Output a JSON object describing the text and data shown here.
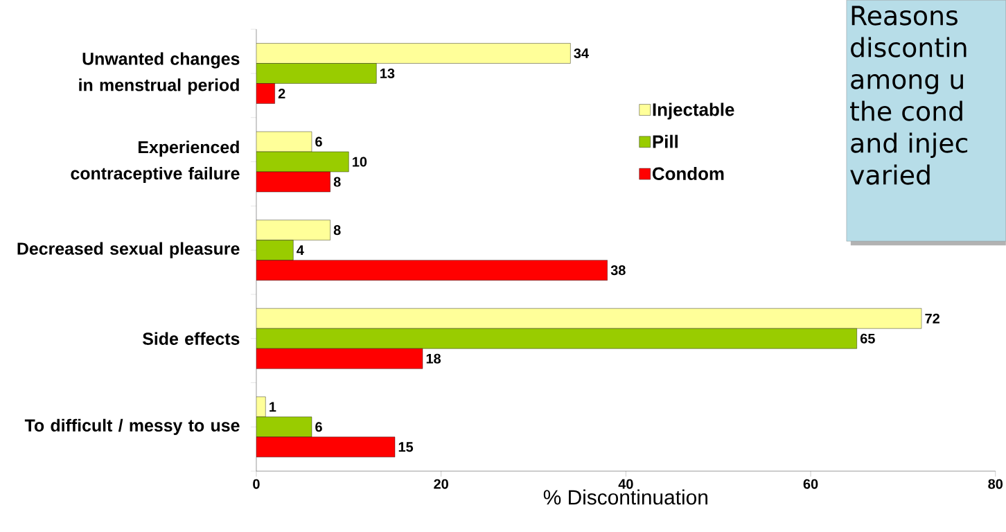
{
  "chart_data": {
    "type": "bar",
    "orientation": "horizontal",
    "xlabel": "% Discontinuation",
    "categories": [
      "Unwanted changes in menstrual period",
      "Experienced contraceptive failure",
      "Decreased sexual pleasure",
      "Side effects",
      "To difficult / messy to use"
    ],
    "series": [
      {
        "name": "Injectable",
        "color": "#ffff99",
        "values": [
          34,
          6,
          8,
          72,
          1
        ]
      },
      {
        "name": "Pill",
        "color": "#99cc00",
        "values": [
          13,
          10,
          4,
          65,
          6
        ]
      },
      {
        "name": "Condom",
        "color": "#ff0000",
        "values": [
          2,
          8,
          38,
          18,
          15
        ]
      }
    ],
    "xlim": [
      0,
      80
    ],
    "xticks": [
      0,
      20,
      40,
      60,
      80
    ],
    "data_labels": true,
    "legend": "top right",
    "grid": false,
    "annotations": [
      "Reasons",
      "discontin",
      "among u",
      "the cond",
      "and injec",
      "varied"
    ]
  }
}
